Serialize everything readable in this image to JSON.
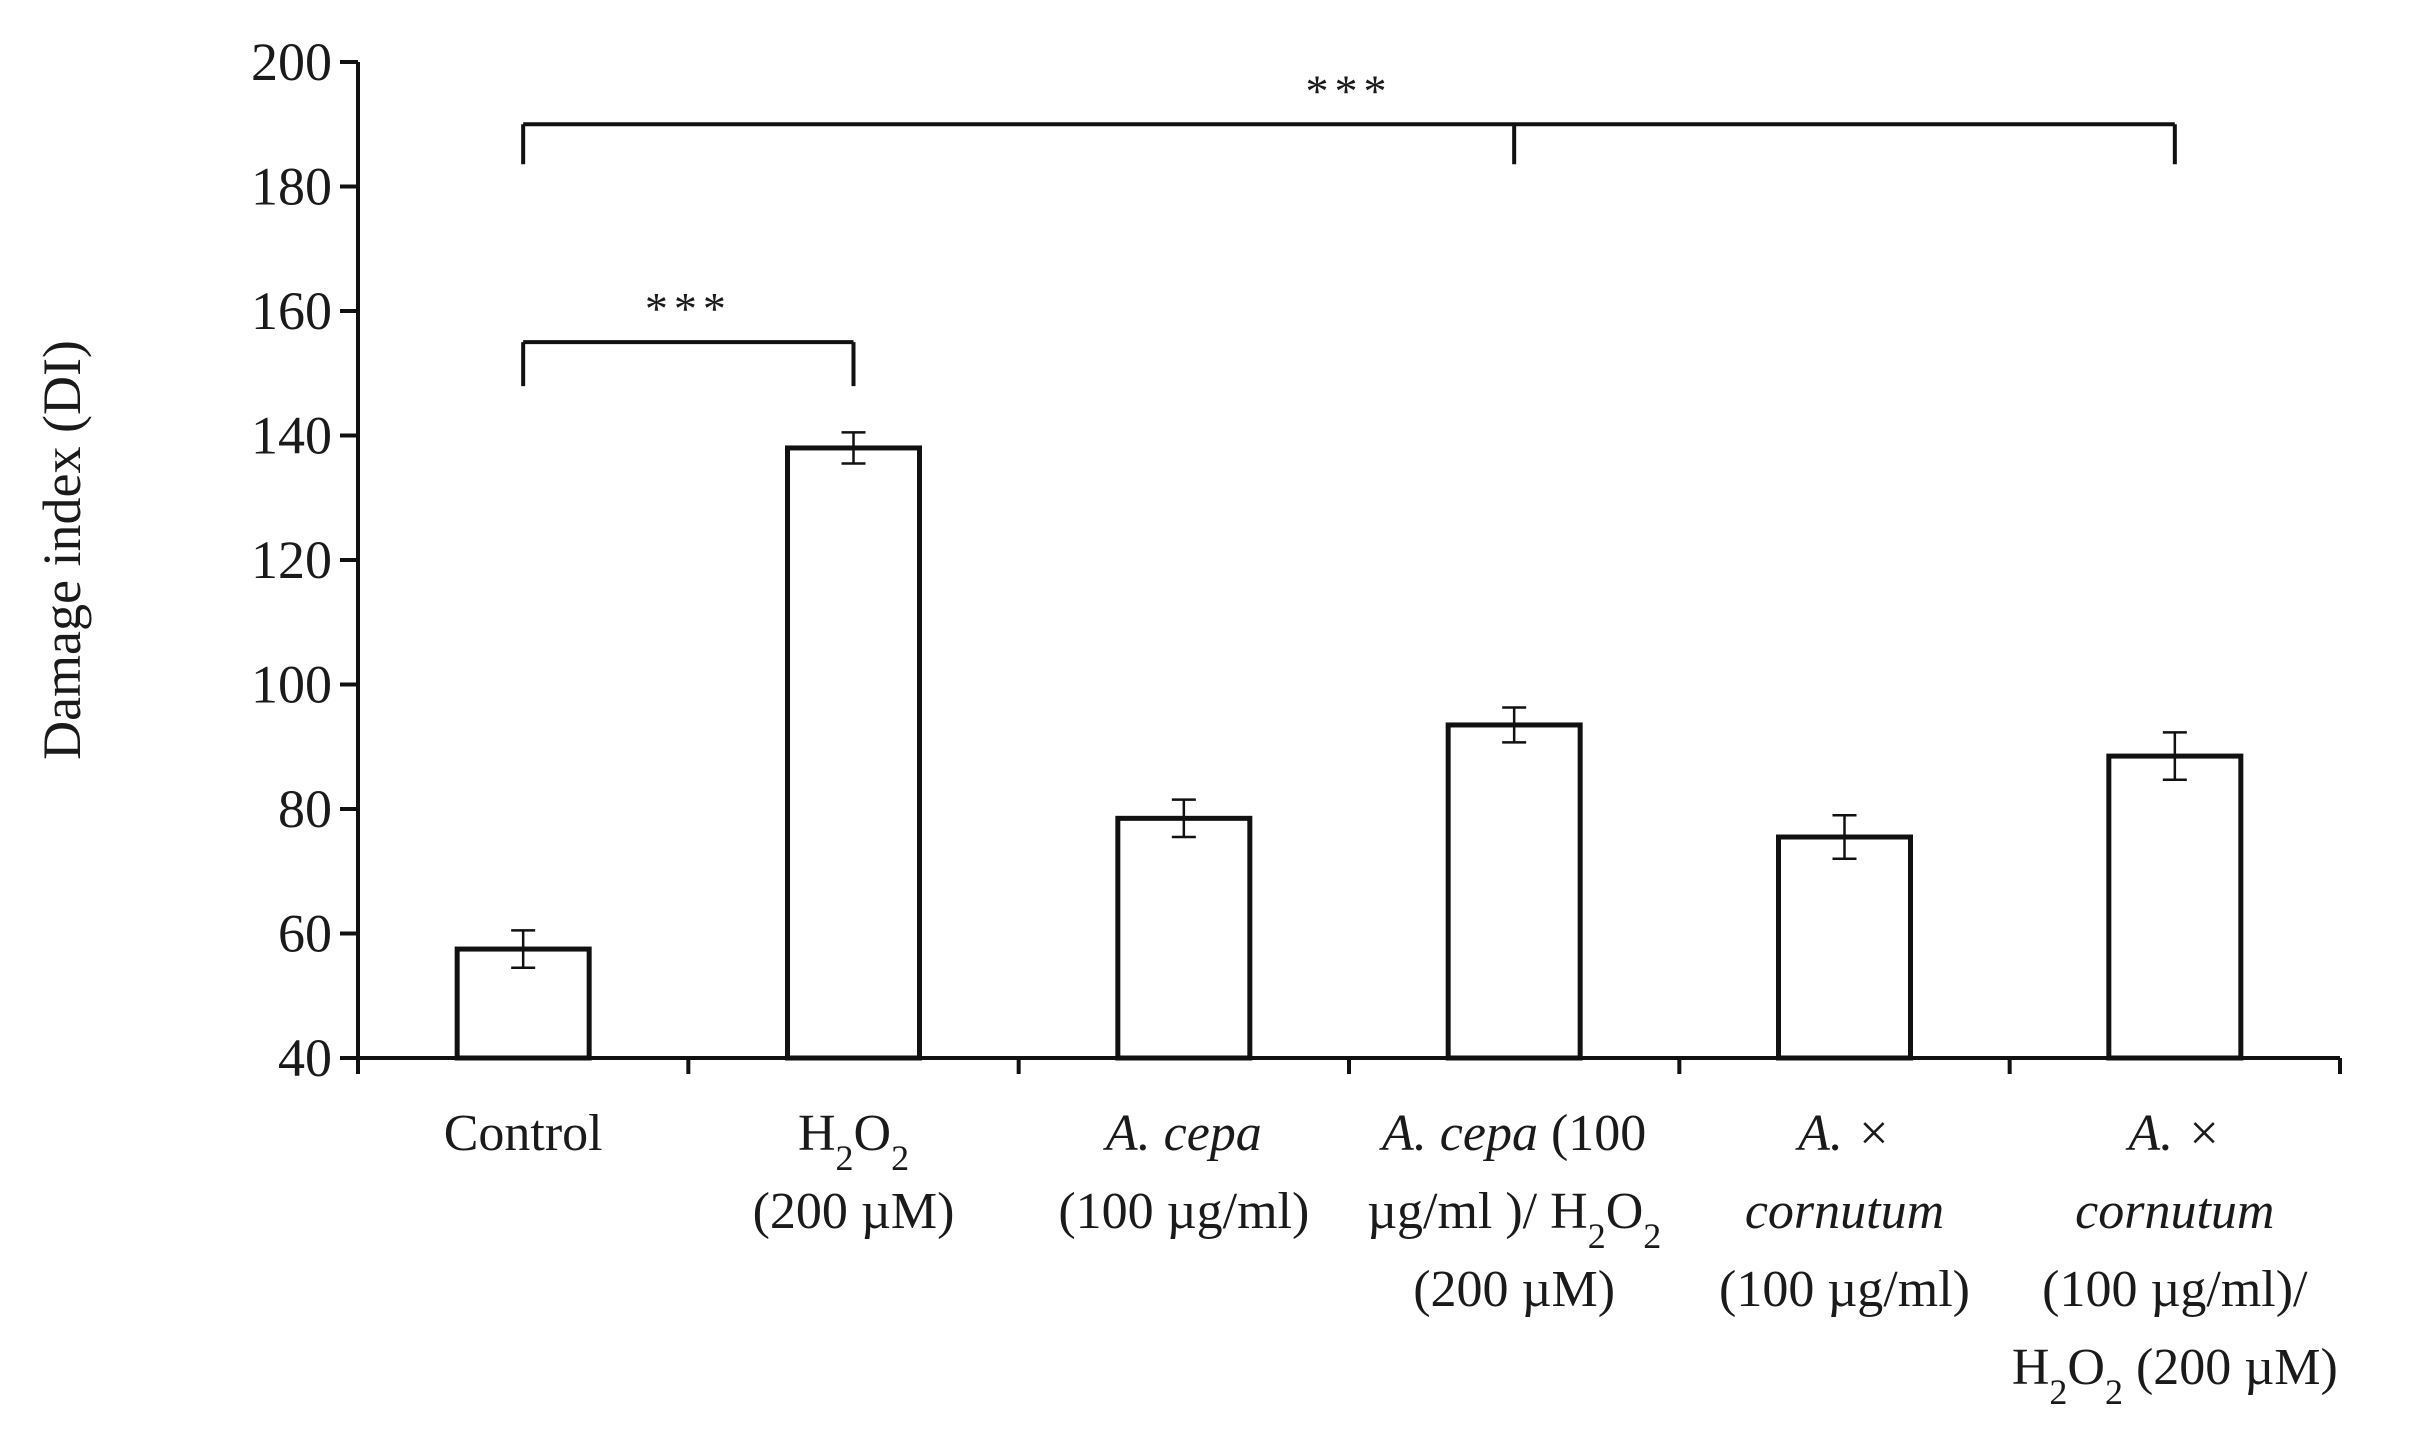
{
  "chart_data": {
    "type": "bar",
    "ylabel": "Damage index (DI)",
    "ylim": [
      40,
      200
    ],
    "yticks": [
      40,
      60,
      80,
      100,
      120,
      140,
      160,
      180,
      200
    ],
    "grid": false,
    "categories": [
      [
        {
          "t": "Control"
        }
      ],
      [
        {
          "t": "H"
        },
        {
          "t": "2",
          "sub": true
        },
        {
          "t": "O"
        },
        {
          "t": "2",
          "sub": true
        },
        {
          "br": true
        },
        {
          "t": "(200 µM)"
        }
      ],
      [
        {
          "t": "A. cepa",
          "i": true
        },
        {
          "br": true
        },
        {
          "t": "(100 µg/ml)"
        }
      ],
      [
        {
          "t": "A. cepa",
          "i": true
        },
        {
          "t": " (100"
        },
        {
          "br": true
        },
        {
          "t": "µg/ml )/ H"
        },
        {
          "t": "2",
          "sub": true
        },
        {
          "t": "O"
        },
        {
          "t": "2",
          "sub": true
        },
        {
          "br": true
        },
        {
          "t": "(200 µM)"
        }
      ],
      [
        {
          "t": "A. ×",
          "i": true
        },
        {
          "br": true
        },
        {
          "t": "cornutum",
          "i": true
        },
        {
          "br": true
        },
        {
          "t": "(100 µg/ml)"
        }
      ],
      [
        {
          "t": "A. ×",
          "i": true
        },
        {
          "br": true
        },
        {
          "t": "cornutum",
          "i": true
        },
        {
          "br": true
        },
        {
          "t": "(100 µg/ml)/"
        },
        {
          "br": true
        },
        {
          "t": "H"
        },
        {
          "t": "2",
          "sub": true
        },
        {
          "t": "O"
        },
        {
          "t": "2",
          "sub": true
        },
        {
          "t": " (200 µM)"
        }
      ]
    ],
    "values": [
      57.5,
      138,
      78.5,
      93.5,
      75.5,
      88.5
    ],
    "errors": [
      3,
      2.5,
      3,
      2.8,
      3.5,
      3.8
    ],
    "annotations": [
      {
        "label": "***",
        "from": 0,
        "to": 1,
        "y": 155
      },
      {
        "label": "***",
        "from": 0,
        "to": [
          3,
          5
        ],
        "y": 190
      }
    ]
  }
}
